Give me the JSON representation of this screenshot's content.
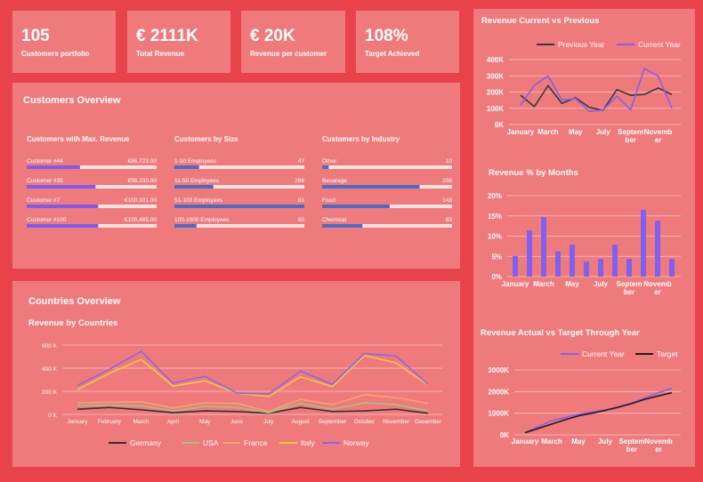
{
  "kpis": [
    {
      "value": "105",
      "label": "Customers portfolio"
    },
    {
      "value": "€ 2111K",
      "label": "Total Revenue"
    },
    {
      "value": "€ 20K",
      "label": "Revenue per customer"
    },
    {
      "value": "108%",
      "label": "Target Achieved"
    }
  ],
  "customers_overview": {
    "title": "Customers Overview",
    "columns": [
      {
        "title": "Customers with Max. Revenue",
        "color": "#7d5bf2",
        "rows": [
          {
            "label": "Customer #44",
            "value": "€86,723.00",
            "fill": 41
          },
          {
            "label": "Customer #35",
            "value": "€98,230.00",
            "fill": 53
          },
          {
            "label": "Customer #7",
            "value": "€100,101.00",
            "fill": 55
          },
          {
            "label": "Customer #100",
            "value": "€100,485.00",
            "fill": 55
          }
        ]
      },
      {
        "title": "Customers by Size",
        "color": "#4a6cc9",
        "rows": [
          {
            "label": "1-10 Employees",
            "value": "47",
            "fill": 19
          },
          {
            "label": "11-50 Employees",
            "value": "266",
            "fill": 30
          },
          {
            "label": "51-100 Employees",
            "value": "81",
            "fill": 100
          },
          {
            "label": "100-1000 Employees",
            "value": "50",
            "fill": 17
          }
        ]
      },
      {
        "title": "Customers by Industry",
        "color": "#4a6cc9",
        "rows": [
          {
            "label": "Other",
            "value": "10",
            "fill": 5
          },
          {
            "label": "Bevarage",
            "value": "208",
            "fill": 75
          },
          {
            "label": "Food",
            "value": "143",
            "fill": 52
          },
          {
            "label": "Chemical",
            "value": "83",
            "fill": 31
          }
        ]
      }
    ]
  },
  "countries_overview": {
    "title": "Countries Overview"
  },
  "chart_data": [
    {
      "type": "line",
      "title": "Revenue Current vs Previous",
      "legend": "top",
      "grid": true,
      "categories": [
        "January",
        null,
        "March",
        null,
        "May",
        null,
        "July",
        null,
        "September",
        null,
        "November",
        null
      ],
      "ylim": [
        0,
        400000
      ],
      "yticks": [
        {
          "value": 0,
          "label": "0K"
        },
        {
          "value": 100000,
          "label": "100K"
        },
        {
          "value": 200000,
          "label": "200K"
        },
        {
          "value": 300000,
          "label": "300K"
        },
        {
          "value": 400000,
          "label": "400K"
        }
      ],
      "series": [
        {
          "name": "Previous Year",
          "color": "#3a3a3a",
          "values": [
            180000,
            110000,
            240000,
            130000,
            165000,
            105000,
            88000,
            215000,
            180000,
            185000,
            225000,
            185000
          ]
        },
        {
          "name": "Current Year",
          "color": "#8060f0",
          "values": [
            120000,
            240000,
            300000,
            150000,
            160000,
            80000,
            90000,
            175000,
            90000,
            345000,
            300000,
            100000
          ]
        }
      ]
    },
    {
      "type": "bar",
      "title": "Revenue % by Months",
      "grid": true,
      "color": "#8060f0",
      "categories": [
        "January",
        null,
        "March",
        null,
        "May",
        null,
        "July",
        null,
        "September",
        null,
        "November",
        null
      ],
      "ylim": [
        0,
        20
      ],
      "yticks": [
        {
          "value": 0,
          "label": "0%"
        },
        {
          "value": 5,
          "label": "5%"
        },
        {
          "value": 10,
          "label": "10%"
        },
        {
          "value": 15,
          "label": "15%"
        },
        {
          "value": 20,
          "label": "20%"
        }
      ],
      "values": [
        5.1,
        11.4,
        14.7,
        6.2,
        7.9,
        3.7,
        4.4,
        7.9,
        4.4,
        16.5,
        13.8,
        4.4
      ]
    },
    {
      "type": "line",
      "title": "Revenue Actual vs Target Through Year",
      "legend": "top",
      "grid": true,
      "categories": [
        "January",
        null,
        "March",
        null,
        "May",
        null,
        "July",
        null,
        "September",
        null,
        "November",
        null
      ],
      "ylim": [
        0,
        3000000
      ],
      "yticks": [
        {
          "value": 0,
          "label": "0K"
        },
        {
          "value": 1000000,
          "label": "1000K"
        },
        {
          "value": 2000000,
          "label": "2000K"
        },
        {
          "value": 3000000,
          "label": "3000K"
        }
      ],
      "series": [
        {
          "name": "Current Year",
          "color": "#8060f0",
          "values": [
            100000,
            380000,
            650000,
            800000,
            950000,
            1050000,
            1150000,
            1300000,
            1480000,
            1700000,
            1950000,
            2150000
          ]
        },
        {
          "name": "Target",
          "color": "#1e1e1e",
          "values": [
            100000,
            300000,
            500000,
            700000,
            880000,
            1000000,
            1130000,
            1280000,
            1450000,
            1650000,
            1800000,
            1950000
          ]
        }
      ]
    },
    {
      "type": "line",
      "title": "Revenue by Countries",
      "legend": "bottom",
      "grid": true,
      "categories": [
        "January",
        "February",
        "March",
        "April",
        "May",
        "June",
        "July",
        "August",
        "September",
        "October",
        "November",
        "December"
      ],
      "ylim": [
        0,
        600000
      ],
      "yticks": [
        {
          "value": 0,
          "label": "0 K"
        },
        {
          "value": 200000,
          "label": "200 K"
        },
        {
          "value": 400000,
          "label": "400 K"
        },
        {
          "value": 600000,
          "label": "600 K"
        }
      ],
      "series": [
        {
          "name": "Germany",
          "color": "#333333",
          "values": [
            45000,
            60000,
            40000,
            15000,
            30000,
            25000,
            10000,
            60000,
            25000,
            30000,
            45000,
            10000
          ]
        },
        {
          "name": "USA",
          "color": "#a9c27e",
          "values": [
            75000,
            80000,
            75000,
            30000,
            70000,
            60000,
            15000,
            95000,
            45000,
            100000,
            85000,
            30000
          ]
        },
        {
          "name": "France",
          "color": "#f5a56c",
          "values": [
            100000,
            105000,
            110000,
            55000,
            100000,
            95000,
            25000,
            130000,
            85000,
            170000,
            145000,
            95000
          ]
        },
        {
          "name": "Italy",
          "color": "#f5c542",
          "values": [
            215000,
            355000,
            475000,
            245000,
            290000,
            185000,
            155000,
            325000,
            240000,
            510000,
            445000,
            255000
          ]
        },
        {
          "name": "Norway",
          "color": "#8866ee",
          "values": [
            250000,
            390000,
            545000,
            270000,
            330000,
            185000,
            175000,
            375000,
            260000,
            525000,
            505000,
            260000
          ]
        }
      ]
    }
  ]
}
